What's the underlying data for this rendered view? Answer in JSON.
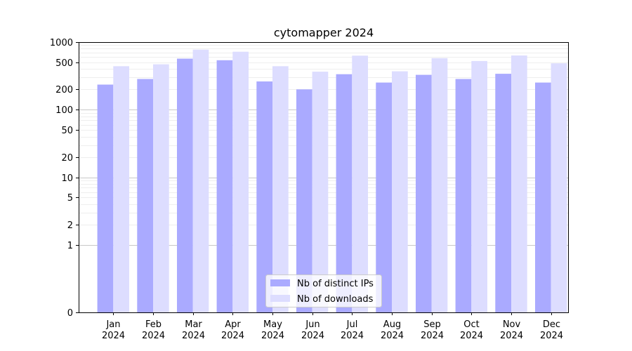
{
  "chart_data": {
    "type": "bar",
    "title": "cytomapper 2024",
    "xlabel": "",
    "ylabel": "",
    "yscale": "symlog",
    "ylim": [
      0,
      1000
    ],
    "yticks": [
      0,
      1,
      2,
      5,
      10,
      20,
      50,
      100,
      200,
      500,
      1000
    ],
    "grid": true,
    "legend_position": "bottom-center",
    "categories": [
      [
        "Jan",
        "2024"
      ],
      [
        "Feb",
        "2024"
      ],
      [
        "Mar",
        "2024"
      ],
      [
        "Apr",
        "2024"
      ],
      [
        "May",
        "2024"
      ],
      [
        "Jun",
        "2024"
      ],
      [
        "Jul",
        "2024"
      ],
      [
        "Aug",
        "2024"
      ],
      [
        "Sep",
        "2024"
      ],
      [
        "Oct",
        "2024"
      ],
      [
        "Nov",
        "2024"
      ],
      [
        "Dec",
        "2024"
      ]
    ],
    "series": [
      {
        "name": "Nb of distinct IPs",
        "color": "#aaaaff",
        "values": [
          235,
          285,
          570,
          540,
          262,
          200,
          335,
          252,
          328,
          285,
          340,
          252
        ]
      },
      {
        "name": "Nb of downloads",
        "color": "#ddddff",
        "values": [
          440,
          470,
          775,
          720,
          440,
          365,
          630,
          370,
          580,
          525,
          635,
          485
        ]
      }
    ]
  }
}
